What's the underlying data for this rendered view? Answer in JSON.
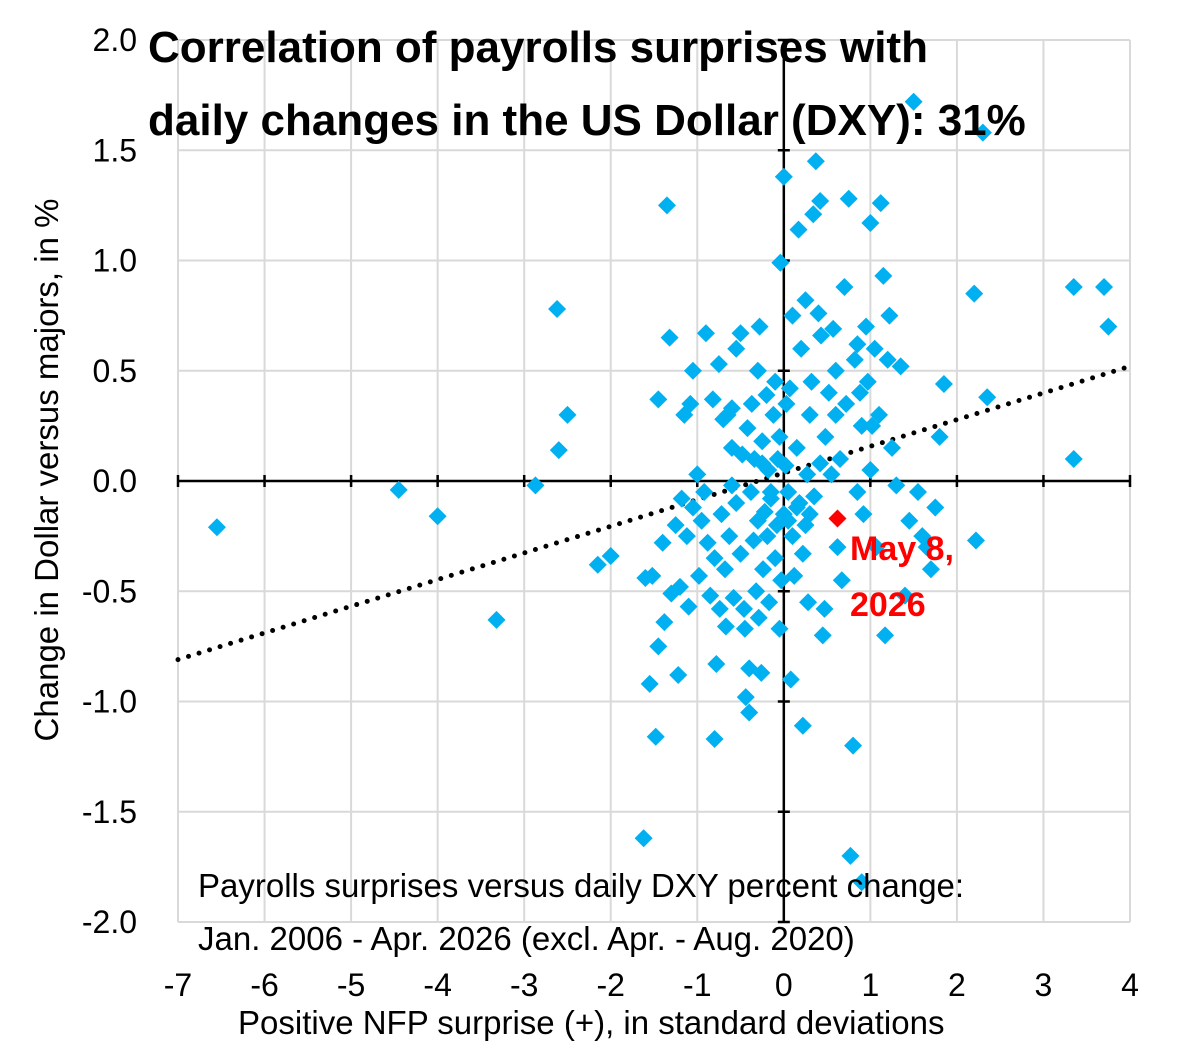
{
  "chart_data": {
    "type": "scatter",
    "title_line1": "Correlation of payrolls surprises with",
    "title_line2": "daily changes in the US Dollar (DXY): 31%",
    "xlabel": "Positive NFP surprise (+), in standard deviations",
    "ylabel": "Change in Dollar versus majors, in %",
    "xlim": [
      -7,
      4
    ],
    "ylim": [
      -2.0,
      2.0
    ],
    "x_ticks": [
      "-7",
      "-6",
      "-5",
      "-4",
      "-3",
      "-2",
      "-1",
      "0",
      "1",
      "2",
      "3",
      "4"
    ],
    "y_ticks": [
      "2.0",
      "1.5",
      "1.0",
      "0.5",
      "0.0",
      "-0.5",
      "-1.0",
      "-1.5",
      "-2.0"
    ],
    "grid": true,
    "note_line1": "Payrolls surprises versus daily DXY percent change:",
    "note_line2": "Jan. 2006 - Apr. 2026 (excl. Apr. - Aug. 2020)",
    "trendline": {
      "style": "dotted",
      "x": [
        -7,
        4
      ],
      "y": [
        -0.81,
        0.52
      ]
    },
    "series_color": "#00B0F0",
    "highlight": {
      "label_line1": "May 8,",
      "label_line2": "2026",
      "x": 0.62,
      "y": -0.17,
      "color": "#FF0000"
    },
    "points": [
      [
        -6.55,
        -0.21
      ],
      [
        -4.45,
        -0.04
      ],
      [
        -4.0,
        -0.16
      ],
      [
        -3.32,
        -0.63
      ],
      [
        -2.87,
        -0.02
      ],
      [
        -2.62,
        0.78
      ],
      [
        -2.6,
        0.14
      ],
      [
        -2.5,
        0.3
      ],
      [
        -2.15,
        -0.38
      ],
      [
        -2.0,
        -0.34
      ],
      [
        -1.62,
        -1.62
      ],
      [
        -1.6,
        -0.44
      ],
      [
        -1.55,
        -0.92
      ],
      [
        -1.52,
        -0.43
      ],
      [
        -1.48,
        -1.16
      ],
      [
        -1.45,
        -0.75
      ],
      [
        -1.45,
        0.37
      ],
      [
        -1.4,
        -0.28
      ],
      [
        -1.38,
        -0.64
      ],
      [
        -1.35,
        1.25
      ],
      [
        -1.32,
        0.65
      ],
      [
        -1.3,
        -0.51
      ],
      [
        -1.25,
        -0.2
      ],
      [
        -1.22,
        -0.88
      ],
      [
        -1.2,
        -0.48
      ],
      [
        -1.18,
        -0.08
      ],
      [
        -1.15,
        0.3
      ],
      [
        -1.12,
        -0.25
      ],
      [
        -1.1,
        -0.57
      ],
      [
        -1.08,
        0.35
      ],
      [
        -1.05,
        0.5
      ],
      [
        -1.05,
        -0.12
      ],
      [
        -1.0,
        0.03
      ],
      [
        -0.98,
        -0.43
      ],
      [
        -0.95,
        -0.18
      ],
      [
        -0.92,
        -0.05
      ],
      [
        -0.9,
        0.67
      ],
      [
        -0.88,
        -0.28
      ],
      [
        -0.85,
        -0.52
      ],
      [
        -0.82,
        0.37
      ],
      [
        -0.8,
        -0.35
      ],
      [
        -0.8,
        -1.17
      ],
      [
        -0.78,
        -0.83
      ],
      [
        -0.75,
        0.53
      ],
      [
        -0.74,
        -0.58
      ],
      [
        -0.72,
        -0.15
      ],
      [
        -0.7,
        0.28
      ],
      [
        -0.68,
        -0.4
      ],
      [
        -0.67,
        -0.66
      ],
      [
        -0.65,
        0.3
      ],
      [
        -0.63,
        -0.25
      ],
      [
        -0.6,
        0.33
      ],
      [
        -0.6,
        -0.02
      ],
      [
        -0.58,
        -0.53
      ],
      [
        -0.55,
        -0.1
      ],
      [
        -0.55,
        0.6
      ],
      [
        -0.5,
        0.67
      ],
      [
        -0.5,
        -0.33
      ],
      [
        -0.48,
        0.12
      ],
      [
        -0.46,
        -0.58
      ],
      [
        -0.45,
        -0.67
      ],
      [
        -0.44,
        -0.98
      ],
      [
        -0.42,
        0.24
      ],
      [
        -0.4,
        -0.85
      ],
      [
        -0.4,
        -1.05
      ],
      [
        -0.38,
        -0.05
      ],
      [
        -0.37,
        0.35
      ],
      [
        -0.35,
        -0.27
      ],
      [
        -0.34,
        0.1
      ],
      [
        -0.32,
        -0.5
      ],
      [
        -0.3,
        0.5
      ],
      [
        -0.29,
        -0.62
      ],
      [
        -0.28,
        0.7
      ],
      [
        -0.26,
        -0.87
      ],
      [
        -0.25,
        0.18
      ],
      [
        -0.24,
        -0.4
      ],
      [
        -0.22,
        -0.14
      ],
      [
        -0.2,
        0.39
      ],
      [
        -0.19,
        -0.25
      ],
      [
        -0.18,
        0.05
      ],
      [
        -0.17,
        -0.55
      ],
      [
        -0.15,
        -0.08
      ],
      [
        -0.12,
        0.3
      ],
      [
        -0.1,
        0.45
      ],
      [
        -0.1,
        -0.35
      ],
      [
        -0.08,
        -0.2
      ],
      [
        -0.07,
        0.1
      ],
      [
        -0.05,
        -0.67
      ],
      [
        -0.04,
        0.99
      ],
      [
        -0.03,
        -0.45
      ],
      [
        0.0,
        1.38
      ],
      [
        0.0,
        -0.15
      ],
      [
        0.02,
        0.07
      ],
      [
        0.03,
        0.35
      ],
      [
        0.05,
        -0.05
      ],
      [
        0.07,
        0.42
      ],
      [
        0.08,
        -0.9
      ],
      [
        0.1,
        0.75
      ],
      [
        0.1,
        -0.25
      ],
      [
        0.12,
        -0.43
      ],
      [
        0.15,
        0.15
      ],
      [
        0.17,
        1.14
      ],
      [
        0.18,
        -0.1
      ],
      [
        0.2,
        0.6
      ],
      [
        0.22,
        -0.33
      ],
      [
        0.22,
        -1.11
      ],
      [
        0.25,
        0.82
      ],
      [
        0.27,
        0.03
      ],
      [
        0.28,
        -0.55
      ],
      [
        0.3,
        0.3
      ],
      [
        0.32,
        0.45
      ],
      [
        0.34,
        1.21
      ],
      [
        0.35,
        -0.07
      ],
      [
        0.37,
        1.45
      ],
      [
        0.4,
        0.76
      ],
      [
        0.42,
        1.27
      ],
      [
        0.43,
        0.66
      ],
      [
        0.45,
        -0.7
      ],
      [
        0.47,
        -0.58
      ],
      [
        0.48,
        0.2
      ],
      [
        0.52,
        0.4
      ],
      [
        0.55,
        0.03
      ],
      [
        0.57,
        0.69
      ],
      [
        0.6,
        0.3
      ],
      [
        0.62,
        -0.3
      ],
      [
        0.65,
        0.1
      ],
      [
        0.67,
        -0.45
      ],
      [
        0.7,
        0.88
      ],
      [
        0.72,
        0.35
      ],
      [
        0.75,
        1.28
      ],
      [
        0.77,
        -1.7
      ],
      [
        0.8,
        -1.2
      ],
      [
        0.82,
        0.55
      ],
      [
        0.85,
        0.62
      ],
      [
        0.85,
        -0.05
      ],
      [
        0.88,
        0.4
      ],
      [
        0.9,
        -1.82
      ],
      [
        0.92,
        -0.15
      ],
      [
        0.95,
        0.7
      ],
      [
        0.97,
        0.45
      ],
      [
        1.0,
        1.17
      ],
      [
        1.02,
        0.25
      ],
      [
        1.05,
        0.6
      ],
      [
        1.07,
        -0.3
      ],
      [
        1.1,
        0.3
      ],
      [
        1.12,
        1.26
      ],
      [
        1.15,
        0.93
      ],
      [
        1.17,
        -0.7
      ],
      [
        1.2,
        0.55
      ],
      [
        1.22,
        0.75
      ],
      [
        1.25,
        0.15
      ],
      [
        1.3,
        -0.02
      ],
      [
        1.35,
        0.52
      ],
      [
        1.4,
        -0.52
      ],
      [
        1.45,
        -0.18
      ],
      [
        1.5,
        1.72
      ],
      [
        1.55,
        -0.05
      ],
      [
        1.6,
        -0.25
      ],
      [
        1.65,
        -0.3
      ],
      [
        1.7,
        -0.4
      ],
      [
        1.75,
        -0.12
      ],
      [
        1.8,
        0.2
      ],
      [
        1.85,
        0.44
      ],
      [
        2.2,
        0.85
      ],
      [
        2.22,
        -0.27
      ],
      [
        2.3,
        1.58
      ],
      [
        2.35,
        0.38
      ],
      [
        3.35,
        0.88
      ],
      [
        3.35,
        0.1
      ],
      [
        3.7,
        0.88
      ],
      [
        3.75,
        0.7
      ],
      [
        -0.15,
        -0.05
      ],
      [
        0.05,
        -0.18
      ],
      [
        0.15,
        -0.12
      ],
      [
        -0.05,
        0.2
      ],
      [
        0.25,
        -0.2
      ],
      [
        0.42,
        0.08
      ],
      [
        -0.25,
        0.08
      ],
      [
        0.6,
        0.5
      ],
      [
        0.9,
        0.25
      ],
      [
        -0.6,
        0.15
      ],
      [
        1.0,
        0.05
      ],
      [
        -0.3,
        -0.18
      ],
      [
        0.3,
        -0.15
      ]
    ]
  }
}
